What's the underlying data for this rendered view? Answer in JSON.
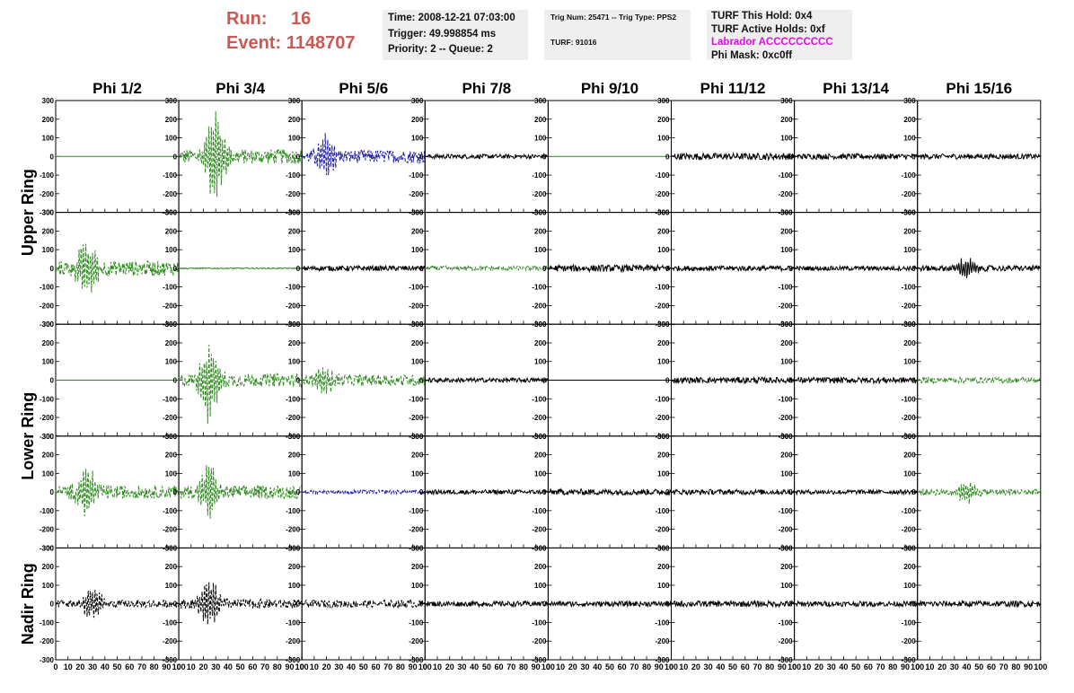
{
  "header": {
    "run_label": "Run:",
    "run_value": "16",
    "event_label": "Event:",
    "event_value": "1148707",
    "time": "Time: 2008-12-21 07:03:00",
    "trigger": "Trigger: 49.998854 ms",
    "priority": "Priority: 2 -- Queue: 2",
    "trig_num": "Trig Num: 25471 -- Trig Type: PPS2",
    "turf": "TURF: 91016",
    "turf_this_hold": "TURF This Hold: 0x4",
    "turf_active_holds": "TURF Active Holds: 0xf",
    "labrador": "Labrador ACCCCCCCCC",
    "phi_mask": "Phi Mask: 0xc0ff"
  },
  "colors": {
    "run_text": "#c95a55",
    "info_bg": "#efefef",
    "labrador_text": "#e10ee1",
    "trace_black": "#000000",
    "trace_green": "#2e8b1e",
    "trace_blue": "#1a1aa0"
  },
  "chart_data": {
    "type": "line",
    "columns": [
      "Phi 1/2",
      "Phi 3/4",
      "Phi 5/6",
      "Phi 7/8",
      "Phi 9/10",
      "Phi 11/12",
      "Phi 13/14",
      "Phi 15/16"
    ],
    "ring_labels": [
      {
        "text": "Upper Ring",
        "rows": [
          0,
          1
        ]
      },
      {
        "text": "Lower Ring",
        "rows": [
          2,
          3
        ]
      },
      {
        "text": "Nadir Ring",
        "rows": [
          4
        ]
      }
    ],
    "xlim": [
      0,
      100
    ],
    "ylim": [
      -300,
      300
    ],
    "x_ticks": [
      "0",
      "10",
      "20",
      "30",
      "40",
      "50",
      "60",
      "70",
      "80",
      "90",
      "100"
    ],
    "y_ticks": [
      "300",
      "200",
      "100",
      "0",
      "-100",
      "-200",
      "-300"
    ],
    "panels": [
      [
        {
          "color": "green",
          "style": "flat",
          "amp": 0,
          "peak": 0
        },
        {
          "color": "green",
          "style": "dashed",
          "amp": 40,
          "peak": 30,
          "burst": 250
        },
        {
          "color": "blue",
          "style": "dashed",
          "amp": 35,
          "peak": 20,
          "burst": 120
        },
        {
          "color": "black",
          "style": "noise",
          "amp": 12,
          "peak": 0
        },
        {
          "color": "green",
          "style": "flat",
          "amp": 0,
          "peak": 0
        },
        {
          "color": "black",
          "style": "noise",
          "amp": 18,
          "peak": 0
        },
        {
          "color": "black",
          "style": "noise",
          "amp": 15,
          "peak": 0
        },
        {
          "color": "black",
          "style": "noise",
          "amp": 14,
          "peak": 0
        }
      ],
      [
        {
          "color": "green",
          "style": "dashed",
          "amp": 40,
          "peak": 25,
          "burst": 180
        },
        {
          "color": "green",
          "style": "flat-noise",
          "amp": 3,
          "peak": 0
        },
        {
          "color": "black",
          "style": "noise",
          "amp": 14,
          "peak": 0
        },
        {
          "color": "green",
          "style": "dashed",
          "amp": 12,
          "peak": 0
        },
        {
          "color": "black",
          "style": "noise",
          "amp": 18,
          "peak": 0
        },
        {
          "color": "black",
          "style": "noise",
          "amp": 14,
          "peak": 0
        },
        {
          "color": "black",
          "style": "noise",
          "amp": 12,
          "peak": 0
        },
        {
          "color": "black",
          "style": "noise",
          "amp": 15,
          "peak": 40,
          "burst": 60
        }
      ],
      [
        {
          "color": "green",
          "style": "flat",
          "amp": 0,
          "peak": 0
        },
        {
          "color": "green",
          "style": "dashed",
          "amp": 35,
          "peak": 25,
          "burst": 220
        },
        {
          "color": "green",
          "style": "dashed",
          "amp": 30,
          "peak": 20,
          "burst": 80
        },
        {
          "color": "black",
          "style": "noise",
          "amp": 12,
          "peak": 0
        },
        {
          "color": "black",
          "style": "flat",
          "amp": 0,
          "peak": 0
        },
        {
          "color": "black",
          "style": "noise",
          "amp": 16,
          "peak": 0
        },
        {
          "color": "black",
          "style": "noise",
          "amp": 16,
          "peak": 0
        },
        {
          "color": "green",
          "style": "dashed",
          "amp": 15,
          "peak": 0
        }
      ],
      [
        {
          "color": "green",
          "style": "dashed",
          "amp": 35,
          "peak": 25,
          "burst": 150
        },
        {
          "color": "green",
          "style": "dashed",
          "amp": 35,
          "peak": 25,
          "burst": 150
        },
        {
          "color": "blue",
          "style": "dashed",
          "amp": 10,
          "peak": 0
        },
        {
          "color": "black",
          "style": "noise",
          "amp": 12,
          "peak": 0
        },
        {
          "color": "black",
          "style": "noise",
          "amp": 16,
          "peak": 0
        },
        {
          "color": "black",
          "style": "noise",
          "amp": 14,
          "peak": 0
        },
        {
          "color": "black",
          "style": "noise",
          "amp": 12,
          "peak": 0
        },
        {
          "color": "green",
          "style": "dashed",
          "amp": 18,
          "peak": 40,
          "burst": 70
        }
      ],
      [
        {
          "color": "black",
          "style": "dashed",
          "amp": 20,
          "peak": 30,
          "burst": 100
        },
        {
          "color": "black",
          "style": "dashed",
          "amp": 25,
          "peak": 25,
          "burst": 170
        },
        {
          "color": "black",
          "style": "dashed",
          "amp": 20,
          "peak": 0
        },
        {
          "color": "black",
          "style": "noise",
          "amp": 14,
          "peak": 0
        },
        {
          "color": "black",
          "style": "noise",
          "amp": 14,
          "peak": 0
        },
        {
          "color": "black",
          "style": "noise",
          "amp": 16,
          "peak": 0
        },
        {
          "color": "black",
          "style": "noise",
          "amp": 14,
          "peak": 0
        },
        {
          "color": "black",
          "style": "noise",
          "amp": 16,
          "peak": 0
        }
      ]
    ]
  }
}
